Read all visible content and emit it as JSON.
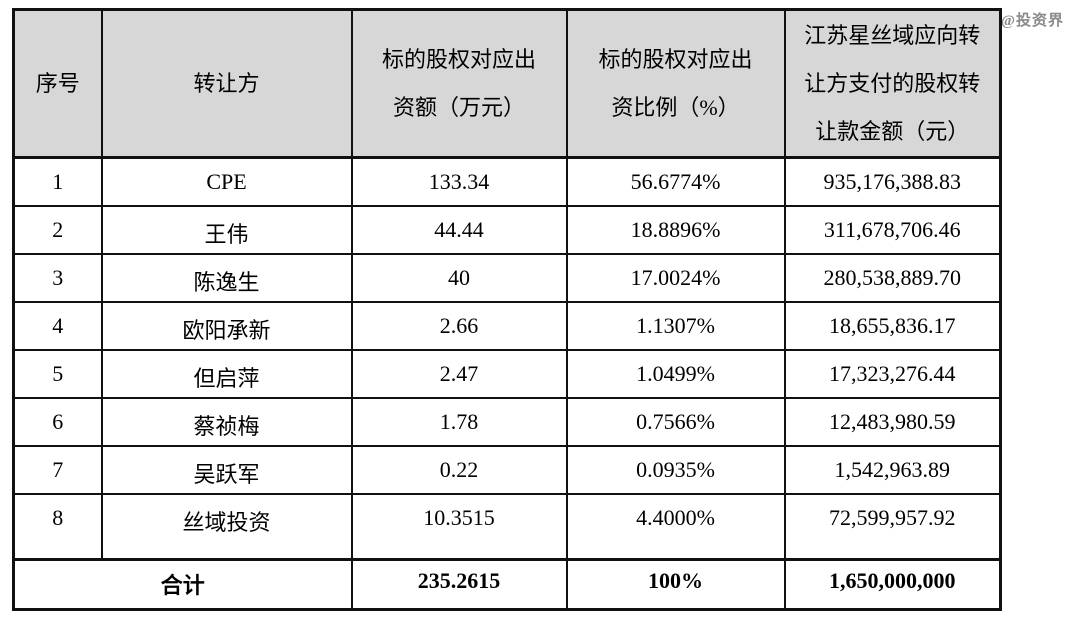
{
  "watermark": "@投资界",
  "colors": {
    "header_bg": "#d7d7d7",
    "border": "#111111",
    "watermark": "#8a8a8a",
    "page_bg": "#ffffff"
  },
  "table": {
    "headers": [
      "序号",
      "转让方",
      "标的股权对应出资额（万元）",
      "标的股权对应出资比例（%）",
      "江苏星丝域应向转让方支付的股权转让款金额（元）"
    ],
    "rows": [
      {
        "no": "1",
        "transferor": "CPE",
        "amount": "133.34",
        "ratio": "56.6774%",
        "payment": "935,176,388.83"
      },
      {
        "no": "2",
        "transferor": "王伟",
        "amount": "44.44",
        "ratio": "18.8896%",
        "payment": "311,678,706.46"
      },
      {
        "no": "3",
        "transferor": "陈逸生",
        "amount": "40",
        "ratio": "17.0024%",
        "payment": "280,538,889.70"
      },
      {
        "no": "4",
        "transferor": "欧阳承新",
        "amount": "2.66",
        "ratio": "1.1307%",
        "payment": "18,655,836.17"
      },
      {
        "no": "5",
        "transferor": "但启萍",
        "amount": "2.47",
        "ratio": "1.0499%",
        "payment": "17,323,276.44"
      },
      {
        "no": "6",
        "transferor": "蔡祯梅",
        "amount": "1.78",
        "ratio": "0.7566%",
        "payment": "12,483,980.59"
      },
      {
        "no": "7",
        "transferor": "吴跃军",
        "amount": "0.22",
        "ratio": "0.0935%",
        "payment": "1,542,963.89"
      },
      {
        "no": "8",
        "transferor": "丝域投资",
        "amount": "10.3515",
        "ratio": "4.4000%",
        "payment": "72,599,957.92"
      }
    ],
    "total": {
      "label": "合计",
      "amount": "235.2615",
      "ratio": "100%",
      "payment": "1,650,000,000"
    }
  }
}
